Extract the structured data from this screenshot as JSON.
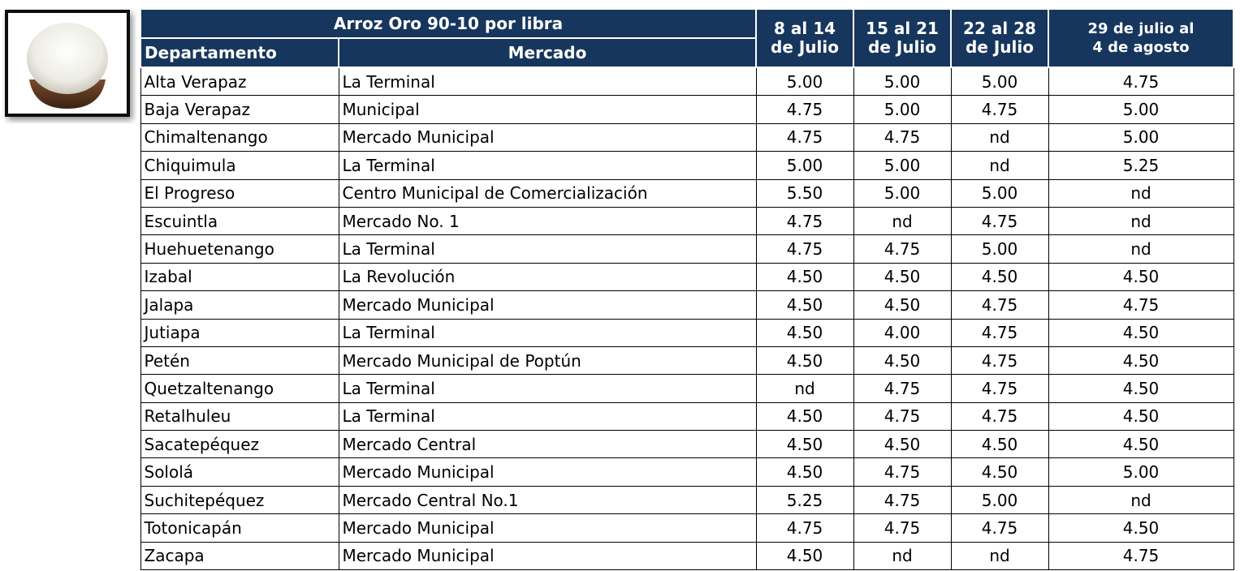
{
  "header": {
    "title": "Arroz Oro 90-10 por libra",
    "columns": [
      "Departamento",
      "Mercado"
    ],
    "weeks": [
      [
        "8 al 14",
        "de Julio"
      ],
      [
        "15 al 21",
        "de Julio"
      ],
      [
        "22 al 28",
        "de Julio"
      ],
      [
        "29 de julio al",
        "4 de agosto"
      ]
    ]
  },
  "rows": [
    [
      "Alta Verapaz",
      "La Terminal",
      "5.00",
      "5.00",
      "5.00",
      "4.75"
    ],
    [
      "Baja Verapaz",
      "Municipal",
      "4.75",
      "5.00",
      "4.75",
      "5.00"
    ],
    [
      "Chimaltenango",
      "Mercado Municipal",
      "4.75",
      "4.75",
      "nd",
      "5.00"
    ],
    [
      "Chiquimula",
      "La Terminal",
      "5.00",
      "5.00",
      "nd",
      "5.25"
    ],
    [
      "El Progreso",
      "Centro Municipal de Comercialización",
      "5.50",
      "5.00",
      "5.00",
      "nd"
    ],
    [
      "Escuintla",
      "Mercado No. 1",
      "4.75",
      "nd",
      "4.75",
      "nd"
    ],
    [
      "Huehuetenango",
      "La Terminal",
      "4.75",
      "4.75",
      "5.00",
      "nd"
    ],
    [
      "Izabal",
      "La Revolución",
      "4.50",
      "4.50",
      "4.50",
      "4.50"
    ],
    [
      "Jalapa",
      "Mercado Municipal",
      "4.50",
      "4.50",
      "4.75",
      "4.75"
    ],
    [
      "Jutiapa",
      "La Terminal",
      "4.50",
      "4.00",
      "4.75",
      "4.50"
    ],
    [
      "Petén",
      "Mercado Municipal de Poptún",
      "4.50",
      "4.50",
      "4.75",
      "4.50"
    ],
    [
      "Quetzaltenango",
      "La Terminal",
      "nd",
      "4.75",
      "4.75",
      "4.50"
    ],
    [
      "Retalhuleu",
      "La Terminal",
      "4.50",
      "4.75",
      "4.75",
      "4.50"
    ],
    [
      "Sacatepéquez",
      "Mercado Central",
      "4.50",
      "4.50",
      "4.50",
      "4.50"
    ],
    [
      "Sololá",
      "Mercado Municipal",
      "4.50",
      "4.75",
      "4.50",
      "5.00"
    ],
    [
      "Suchitepéquez",
      "Mercado Central No.1",
      "5.25",
      "4.75",
      "5.00",
      "nd"
    ],
    [
      "Totonicapán",
      "Mercado Municipal",
      "4.75",
      "4.75",
      "4.75",
      "4.50"
    ],
    [
      "Zacapa",
      "Mercado Municipal",
      "4.50",
      "nd",
      "nd",
      "4.75"
    ]
  ]
}
